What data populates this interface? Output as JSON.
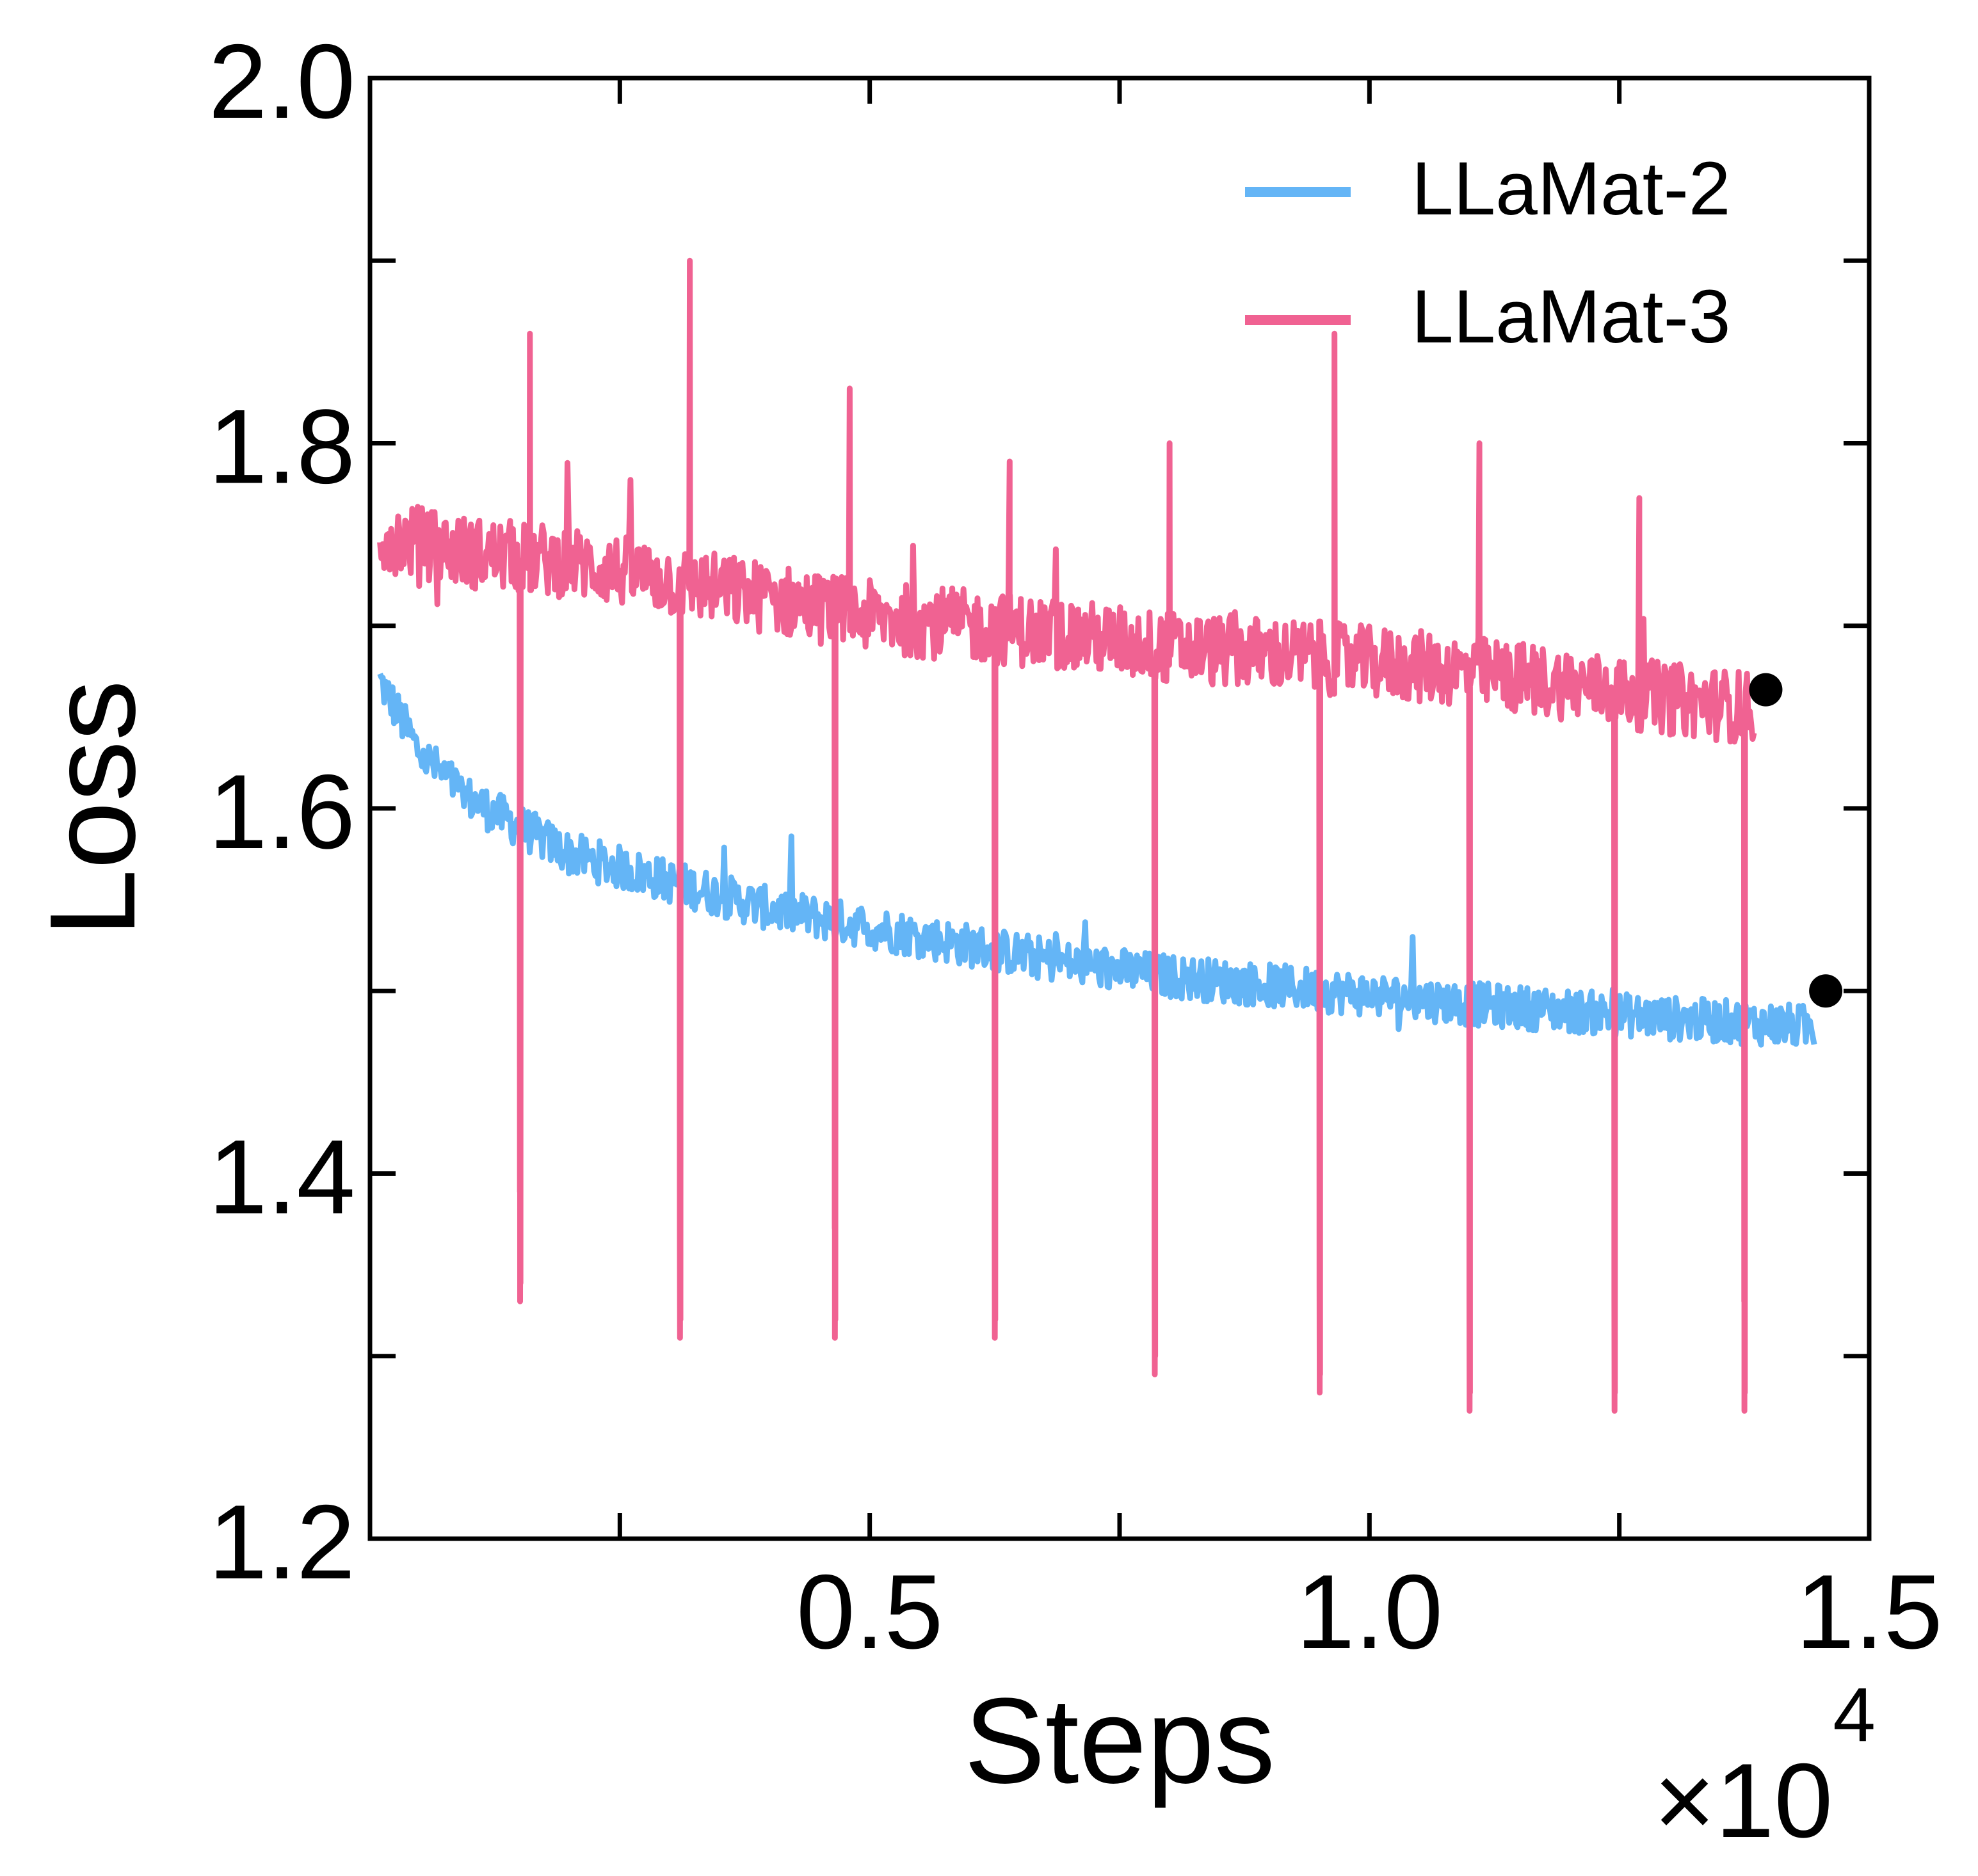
{
  "chart_data": {
    "type": "line",
    "title": "",
    "xlabel": "Steps",
    "ylabel": "Loss",
    "x_multiplier_label": "×10",
    "x_multiplier_exponent": "4",
    "xlim": [
      0,
      15000
    ],
    "ylim": [
      1.2,
      2.0
    ],
    "x_tick_values": [
      0.5,
      1.0,
      1.5
    ],
    "x_tick_labels": [
      "0.5",
      "1.0",
      "1.5"
    ],
    "x_minor_ticks": [
      0.25,
      0.75,
      1.25
    ],
    "y_tick_values": [
      1.2,
      1.4,
      1.6,
      1.8,
      2.0
    ],
    "y_tick_labels": [
      "1.2",
      "1.4",
      "1.6",
      "1.8",
      "2.0"
    ],
    "y_minor_ticks": [
      1.3,
      1.5,
      1.7,
      1.9
    ],
    "grid": false,
    "legend_position": "top-right",
    "series": [
      {
        "name": "LLaMat-2",
        "color": "#64b5f6",
        "x_range": [
          100,
          14450
        ],
        "trend": [
          [
            100,
            1.67
          ],
          [
            500,
            1.63
          ],
          [
            1000,
            1.605
          ],
          [
            1500,
            1.59
          ],
          [
            2000,
            1.575
          ],
          [
            3000,
            1.56
          ],
          [
            4000,
            1.545
          ],
          [
            5000,
            1.535
          ],
          [
            6000,
            1.525
          ],
          [
            7000,
            1.515
          ],
          [
            8000,
            1.508
          ],
          [
            9000,
            1.503
          ],
          [
            10000,
            1.498
          ],
          [
            11000,
            1.493
          ],
          [
            12000,
            1.489
          ],
          [
            13000,
            1.485
          ],
          [
            14000,
            1.482
          ],
          [
            14450,
            1.48
          ]
        ],
        "noise_amplitude": 0.012,
        "end_marker": [
          14450,
          1.5
        ]
      },
      {
        "name": "LLaMat-3",
        "color": "#f06292",
        "x_range": [
          100,
          13850
        ],
        "trend": [
          [
            100,
            1.75
          ],
          [
            1000,
            1.74
          ],
          [
            2000,
            1.735
          ],
          [
            3000,
            1.725
          ],
          [
            4000,
            1.715
          ],
          [
            5000,
            1.705
          ],
          [
            6000,
            1.7
          ],
          [
            7000,
            1.695
          ],
          [
            8000,
            1.688
          ],
          [
            9000,
            1.685
          ],
          [
            10000,
            1.68
          ],
          [
            11000,
            1.675
          ],
          [
            12000,
            1.668
          ],
          [
            13000,
            1.66
          ],
          [
            13850,
            1.655
          ]
        ],
        "noise_amplitude": 0.02,
        "dips": [
          {
            "x": 1500,
            "min": 1.33
          },
          {
            "x": 3100,
            "min": 1.31
          },
          {
            "x": 4650,
            "min": 1.31
          },
          {
            "x": 6250,
            "min": 1.31
          },
          {
            "x": 7850,
            "min": 1.29
          },
          {
            "x": 9500,
            "min": 1.28
          },
          {
            "x": 11000,
            "min": 1.27
          },
          {
            "x": 12450,
            "min": 1.27
          },
          {
            "x": 13750,
            "min": 1.27
          }
        ],
        "spikes": [
          {
            "x": 1600,
            "max": 1.86
          },
          {
            "x": 3200,
            "max": 1.9
          },
          {
            "x": 4800,
            "max": 1.83
          },
          {
            "x": 6400,
            "max": 1.79
          },
          {
            "x": 8000,
            "max": 1.8
          },
          {
            "x": 9650,
            "max": 1.86
          },
          {
            "x": 11100,
            "max": 1.8
          },
          {
            "x": 12700,
            "max": 1.77
          }
        ],
        "end_marker": [
          13850,
          1.665
        ]
      }
    ]
  }
}
